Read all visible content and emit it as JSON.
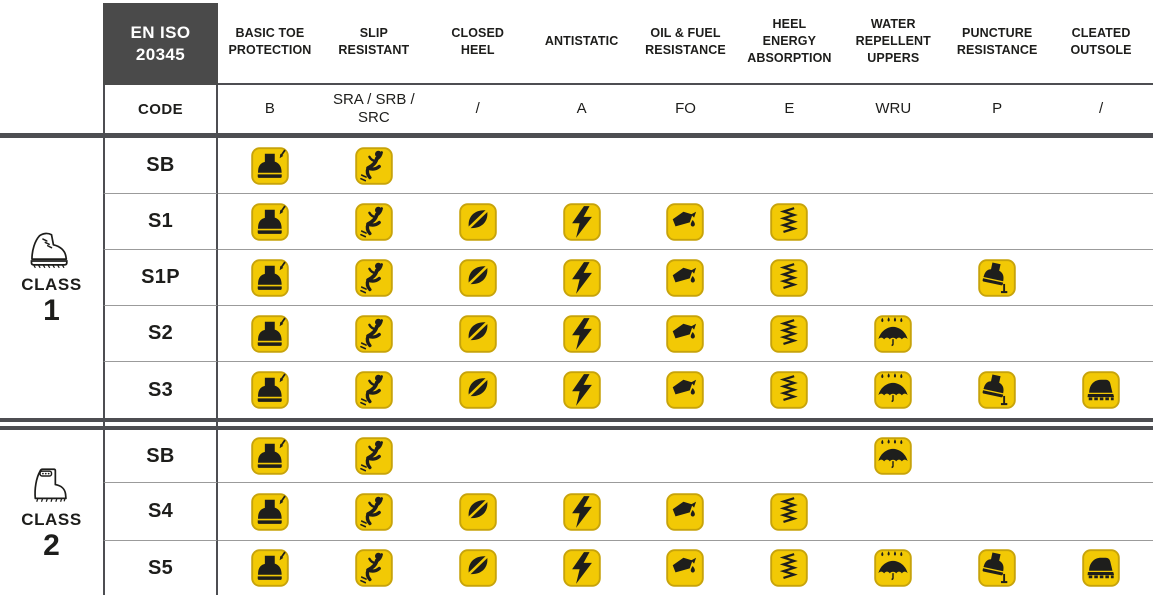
{
  "standard_label": "EN ISO\n20345",
  "code_row_label": "CODE",
  "columns": [
    {
      "key": "toe-protection",
      "label": "BASIC TOE\nPROTECTION",
      "code": "B"
    },
    {
      "key": "slip-resistant",
      "label": "SLIP\nRESISTANT",
      "code": "SRA / SRB / SRC"
    },
    {
      "key": "closed-heel",
      "label": "CLOSED\nHEEL",
      "code": "/"
    },
    {
      "key": "antistatic",
      "label": "ANTISTATIC",
      "code": "A"
    },
    {
      "key": "oil-fuel-resistance",
      "label": "OIL & FUEL\nRESISTANCE",
      "code": "FO"
    },
    {
      "key": "heel-energy-absorption",
      "label": "HEEL\nENERGY\nABSORPTION",
      "code": "E"
    },
    {
      "key": "water-repellent-uppers",
      "label": "WATER\nREPELLENT\nUPPERS",
      "code": "WRU"
    },
    {
      "key": "puncture-resistance",
      "label": "PUNCTURE\nRESISTANCE",
      "code": "P"
    },
    {
      "key": "cleated-outsole",
      "label": "CLEATED\nOUTSOLE",
      "code": "/"
    }
  ],
  "classes": [
    {
      "label": "CLASS",
      "number": "1",
      "boot_icon": "ankle-boot-icon",
      "rows": [
        {
          "code": "SB",
          "features": [
            "toe-protection",
            "slip-resistant"
          ]
        },
        {
          "code": "S1",
          "features": [
            "toe-protection",
            "slip-resistant",
            "closed-heel",
            "antistatic",
            "oil-fuel-resistance",
            "heel-energy-absorption"
          ]
        },
        {
          "code": "S1P",
          "features": [
            "toe-protection",
            "slip-resistant",
            "closed-heel",
            "antistatic",
            "oil-fuel-resistance",
            "heel-energy-absorption",
            "puncture-resistance"
          ]
        },
        {
          "code": "S2",
          "features": [
            "toe-protection",
            "slip-resistant",
            "closed-heel",
            "antistatic",
            "oil-fuel-resistance",
            "heel-energy-absorption",
            "water-repellent-uppers"
          ]
        },
        {
          "code": "S3",
          "features": [
            "toe-protection",
            "slip-resistant",
            "closed-heel",
            "antistatic",
            "oil-fuel-resistance",
            "heel-energy-absorption",
            "water-repellent-uppers",
            "puncture-resistance",
            "cleated-outsole"
          ]
        }
      ]
    },
    {
      "label": "CLASS",
      "number": "2",
      "boot_icon": "rubber-boot-icon",
      "rows": [
        {
          "code": "SB",
          "features": [
            "toe-protection",
            "slip-resistant",
            "water-repellent-uppers"
          ]
        },
        {
          "code": "S4",
          "features": [
            "toe-protection",
            "slip-resistant",
            "closed-heel",
            "antistatic",
            "oil-fuel-resistance",
            "heel-energy-absorption"
          ]
        },
        {
          "code": "S5",
          "features": [
            "toe-protection",
            "slip-resistant",
            "closed-heel",
            "antistatic",
            "oil-fuel-resistance",
            "heel-energy-absorption",
            "water-repellent-uppers",
            "puncture-resistance",
            "cleated-outsole"
          ]
        }
      ]
    }
  ],
  "colors": {
    "badge_yellow": "#F2C905",
    "badge_border": "#C7A30A",
    "pictogram": "#1E1E1C",
    "header_box_gray": "#4A4A4A",
    "main_line_gray": "#4D4E52",
    "row_separator_gray": "#9B9B9B"
  }
}
